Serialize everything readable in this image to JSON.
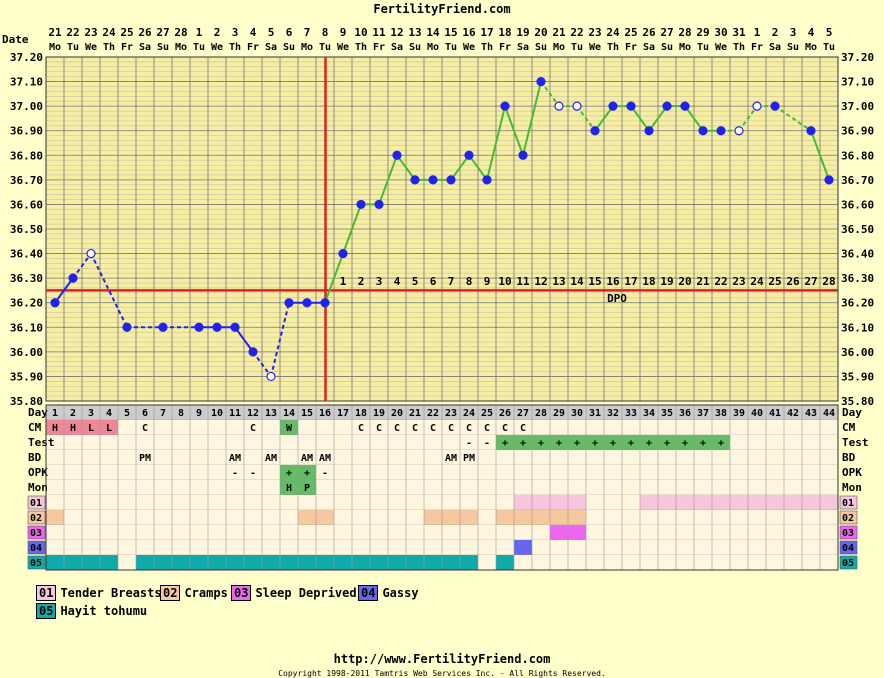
{
  "app": {
    "title": "FertilityFriend.com",
    "footer_url": "http://www.FertilityFriend.com",
    "footer_copyright": "Copyright 1998-2011 Tamtris Web Services Inc. - All Rights Reserved."
  },
  "chart_data": {
    "type": "line",
    "ylim": [
      35.8,
      37.2
    ],
    "yticks": [
      "35.80",
      "35.90",
      "36.00",
      "36.10",
      "36.20",
      "36.30",
      "36.40",
      "36.50",
      "36.60",
      "36.70",
      "36.80",
      "36.90",
      "37.00",
      "37.10",
      "37.20"
    ],
    "row_labels": {
      "date": "Date",
      "day": "Day",
      "cm": "CM",
      "test": "Test",
      "bd": "BD",
      "opk": "OPK",
      "mon": "Mon"
    },
    "dates": [
      "21",
      "22",
      "23",
      "24",
      "25",
      "26",
      "27",
      "28",
      "1",
      "2",
      "3",
      "4",
      "5",
      "6",
      "7",
      "8",
      "9",
      "10",
      "11",
      "12",
      "13",
      "14",
      "15",
      "16",
      "17",
      "18",
      "19",
      "20",
      "21",
      "22",
      "23",
      "24",
      "25",
      "26",
      "27",
      "28",
      "29",
      "30",
      "31",
      "1",
      "2",
      "3",
      "4",
      "5"
    ],
    "weekdays": [
      "Mo",
      "Tu",
      "We",
      "Th",
      "Fr",
      "Sa",
      "Su",
      "Mo",
      "Tu",
      "We",
      "Th",
      "Fr",
      "Sa",
      "Su",
      "Mo",
      "Tu",
      "We",
      "Th",
      "Fr",
      "Sa",
      "Su",
      "Mo",
      "Tu",
      "We",
      "Th",
      "Fr",
      "Sa",
      "Su",
      "Mo",
      "Tu",
      "We",
      "Th",
      "Fr",
      "Sa",
      "Su",
      "Mo",
      "Tu",
      "We",
      "Th",
      "Fr",
      "Sa",
      "Su",
      "Mo",
      "Tu"
    ],
    "cycle_days": [
      "1",
      "2",
      "3",
      "4",
      "5",
      "6",
      "7",
      "8",
      "9",
      "10",
      "11",
      "12",
      "13",
      "14",
      "15",
      "16",
      "17",
      "18",
      "19",
      "20",
      "21",
      "22",
      "23",
      "24",
      "25",
      "26",
      "27",
      "28",
      "29",
      "30",
      "31",
      "32",
      "33",
      "34",
      "35",
      "36",
      "37",
      "38",
      "39",
      "40",
      "41",
      "42",
      "43",
      "44"
    ],
    "temperatures": [
      36.2,
      36.3,
      36.4,
      null,
      36.1,
      null,
      36.1,
      null,
      36.1,
      36.1,
      36.1,
      36.0,
      35.9,
      36.2,
      36.2,
      36.2,
      36.4,
      36.6,
      36.6,
      36.8,
      36.7,
      36.7,
      36.7,
      36.8,
      36.7,
      37.0,
      36.8,
      37.1,
      37.0,
      37.0,
      36.9,
      37.0,
      37.0,
      36.9,
      37.0,
      37.0,
      36.9,
      36.9,
      36.9,
      37.0,
      37.0,
      null,
      36.9,
      36.7
    ],
    "open_points": [
      2,
      12,
      28,
      29,
      38,
      39
    ],
    "coverline": 36.25,
    "ovulation_day": 16,
    "dpo_label": "DPO",
    "dpo": [
      "1",
      "2",
      "3",
      "4",
      "5",
      "6",
      "7",
      "8",
      "9",
      "10",
      "11",
      "12",
      "13",
      "14",
      "15",
      "16",
      "17",
      "18",
      "19",
      "20",
      "21",
      "22",
      "23",
      "24",
      "25",
      "26",
      "27",
      "28"
    ],
    "cm": [
      "H",
      "H",
      "L",
      "L",
      "",
      "C",
      "",
      "",
      "",
      "",
      "",
      "C",
      "",
      "W",
      "",
      "",
      "",
      "C",
      "C",
      "C",
      "C",
      "C",
      "C",
      "C",
      "C",
      "C",
      "C",
      "",
      "",
      "",
      "",
      "",
      "",
      "",
      "",
      "",
      "",
      "",
      "",
      "",
      "",
      "",
      "",
      ""
    ],
    "cm_colors": {
      "H": "#ee8899",
      "L": "#ee8899",
      "W": "#66bb66"
    },
    "test": [
      "",
      "",
      "",
      "",
      "",
      "",
      "",
      "",
      "",
      "",
      "",
      "",
      "",
      "",
      "",
      "",
      "",
      "",
      "",
      "",
      "",
      "",
      "",
      "-",
      "-",
      "+",
      "+",
      "+",
      "+",
      "+",
      "+",
      "+",
      "+",
      "+",
      "+",
      "+",
      "+",
      "+",
      "",
      "",
      "",
      "",
      "",
      ""
    ],
    "bd": [
      "",
      "",
      "",
      "",
      "",
      "PM",
      "",
      "",
      "",
      "",
      "AM",
      "",
      "AM",
      "",
      "AM",
      "AM",
      "",
      "",
      "",
      "",
      "",
      "",
      "AM",
      "PM",
      "",
      "",
      "",
      "",
      "",
      "",
      "",
      "",
      "",
      "",
      "",
      "",
      "",
      "",
      "",
      "",
      "",
      "",
      "",
      ""
    ],
    "opk": [
      "",
      "",
      "",
      "",
      "",
      "",
      "",
      "",
      "",
      "",
      "-",
      "-",
      "",
      "+",
      "+",
      "-",
      "",
      "",
      "",
      "",
      "",
      "",
      "",
      "",
      "",
      "",
      "",
      "",
      "",
      "",
      "",
      "",
      "",
      "",
      "",
      "",
      "",
      "",
      "",
      "",
      "",
      "",
      "",
      ""
    ],
    "mon": [
      "",
      "",
      "",
      "",
      "",
      "",
      "",
      "",
      "",
      "",
      "",
      "",
      "",
      "H",
      "P",
      "",
      "",
      "",
      "",
      "",
      "",
      "",
      "",
      "",
      "",
      "",
      "",
      "",
      "",
      "",
      "",
      "",
      "",
      "",
      "",
      "",
      "",
      "",
      "",
      "",
      "",
      "",
      "",
      ""
    ],
    "symptoms": [
      {
        "code": "01",
        "name": "Tender Breasts",
        "color": "#f5c6dc",
        "days": [
          27,
          28,
          29,
          30,
          34,
          35,
          36,
          37,
          38,
          39,
          40,
          41,
          42,
          43,
          44
        ]
      },
      {
        "code": "02",
        "name": "Cramps",
        "color": "#f5c8a0",
        "days": [
          1,
          15,
          16,
          22,
          23,
          24,
          26,
          27,
          28,
          29,
          30
        ]
      },
      {
        "code": "03",
        "name": "Sleep Deprived",
        "color": "#ee66ee",
        "days": [
          29,
          30
        ]
      },
      {
        "code": "04",
        "name": "Gassy",
        "color": "#6666ee",
        "days": [
          27
        ]
      },
      {
        "code": "05",
        "name": "Hayit tohumu",
        "color": "#11aaaa",
        "days": [
          1,
          2,
          3,
          4,
          6,
          7,
          8,
          9,
          10,
          11,
          12,
          13,
          14,
          15,
          16,
          17,
          18,
          19,
          20,
          21,
          22,
          23,
          24,
          26
        ]
      }
    ]
  }
}
